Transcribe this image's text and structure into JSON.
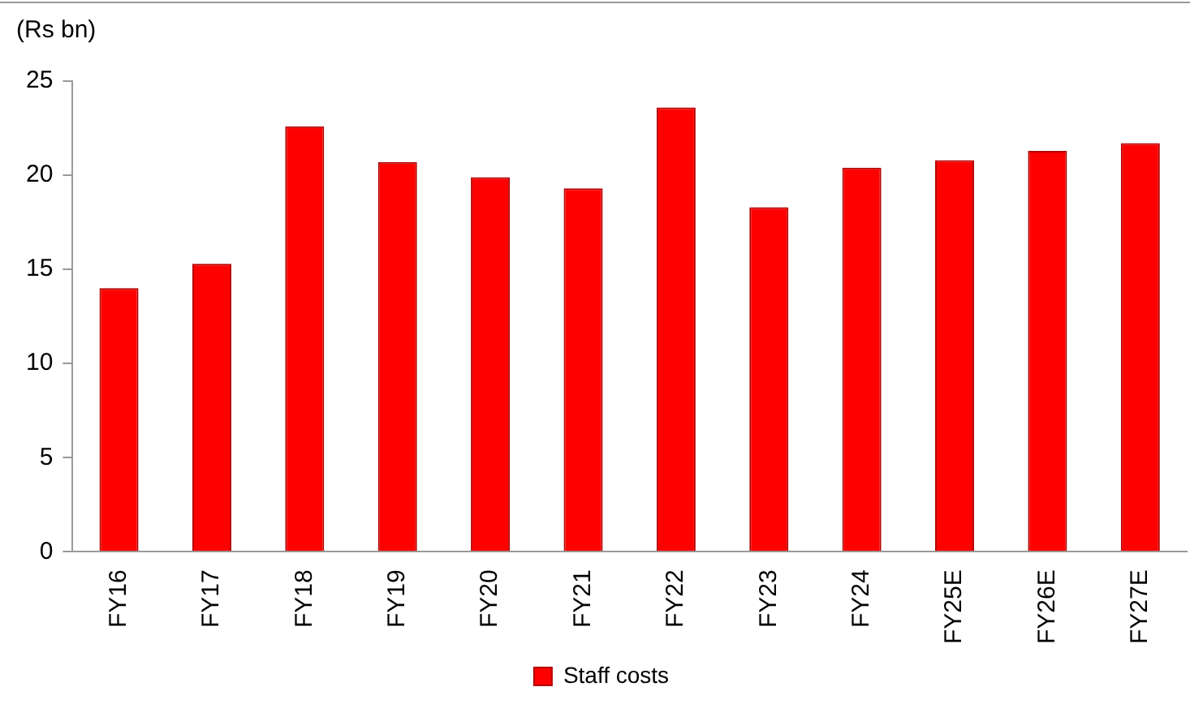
{
  "chart_data": {
    "type": "bar",
    "ylabel": "(Rs bn)",
    "categories": [
      "FY16",
      "FY17",
      "FY18",
      "FY19",
      "FY20",
      "FY21",
      "FY22",
      "FY23",
      "FY24",
      "FY25E",
      "FY26E",
      "FY27E"
    ],
    "series": [
      {
        "name": "Staff costs",
        "color": "#ff0000",
        "values": [
          14.0,
          15.3,
          22.6,
          20.7,
          19.9,
          19.3,
          23.6,
          18.3,
          20.4,
          20.8,
          21.3,
          21.7
        ]
      }
    ],
    "ylim": [
      0,
      25
    ],
    "yticks": [
      0,
      5,
      10,
      15,
      20,
      25
    ],
    "grid": false,
    "legend": "bottom"
  }
}
